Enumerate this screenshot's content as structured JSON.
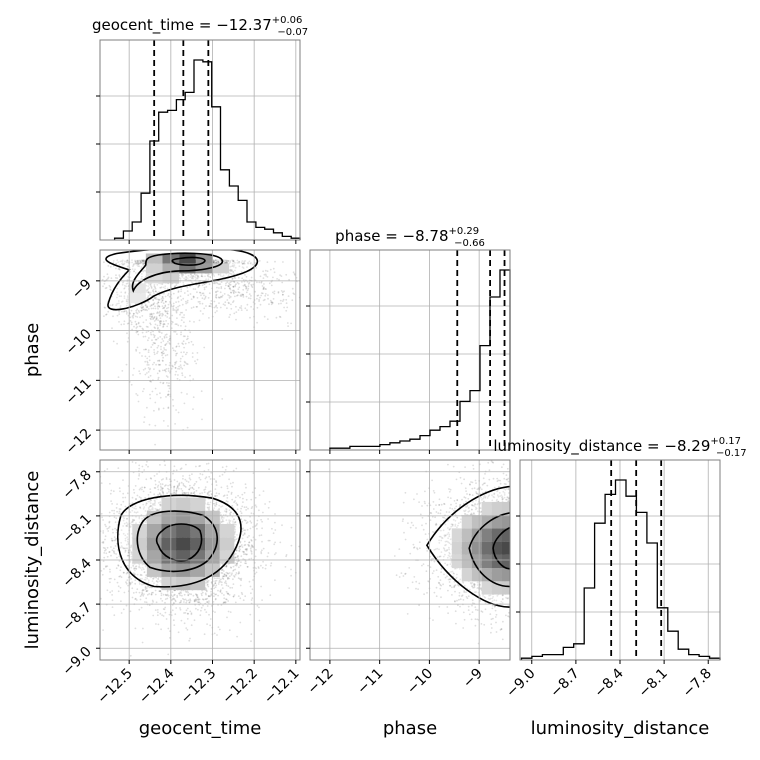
{
  "chart_data": {
    "type": "corner",
    "parameters": [
      "geocent_time",
      "phase",
      "luminosity_distance"
    ],
    "titles": [
      {
        "name": "geocent_time",
        "median": "−12.37",
        "plus": "+0.06",
        "minus": "−0.07"
      },
      {
        "name": "phase",
        "median": "−8.78",
        "plus": "+0.29",
        "minus": "−0.66"
      },
      {
        "name": "luminosity_distance",
        "median": "−8.29",
        "plus": "+0.17",
        "minus": "−0.17"
      }
    ],
    "ranges": [
      [
        -12.57,
        -12.09
      ],
      [
        -12.4,
        -8.38
      ],
      [
        -9.08,
        -7.72
      ]
    ],
    "ticks": [
      {
        "values": [
          -12.5,
          -12.4,
          -12.3,
          -12.2,
          -12.1
        ],
        "labels": [
          "−12.5",
          "−12.4",
          "−12.3",
          "−12.2",
          "−12.1"
        ]
      },
      {
        "values": [
          -12,
          -11,
          -10,
          -9
        ],
        "labels": [
          "−12",
          "−11",
          "−10",
          "−9"
        ]
      },
      {
        "values": [
          -9.0,
          -8.7,
          -8.4,
          -8.1,
          -7.8
        ],
        "labels": [
          "−9.0",
          "−8.7",
          "−8.4",
          "−8.1",
          "−7.8"
        ]
      }
    ],
    "quantiles": [
      [
        -12.44,
        -12.37,
        -12.31
      ],
      [
        -9.44,
        -8.78,
        -8.49
      ],
      [
        -8.46,
        -8.29,
        -8.12
      ]
    ],
    "histograms": [
      {
        "counts": [
          0.01,
          0.05,
          0.1,
          0.26,
          0.55,
          0.71,
          0.72,
          0.78,
          0.82,
          1.0,
          0.99,
          0.74,
          0.39,
          0.3,
          0.22,
          0.1,
          0.07,
          0.06,
          0.04,
          0.02,
          0.01
        ]
      },
      {
        "counts": [
          0.01,
          0.01,
          0.02,
          0.02,
          0.02,
          0.03,
          0.04,
          0.05,
          0.06,
          0.08,
          0.11,
          0.13,
          0.16,
          0.27,
          0.33,
          0.58,
          0.85,
          1.0
        ]
      },
      {
        "counts": [
          0.01,
          0.02,
          0.03,
          0.03,
          0.07,
          0.09,
          0.4,
          0.76,
          0.92,
          1.0,
          0.91,
          0.82,
          0.65,
          0.29,
          0.16,
          0.06,
          0.03,
          0.02,
          0.01
        ]
      }
    ],
    "grid": true
  }
}
